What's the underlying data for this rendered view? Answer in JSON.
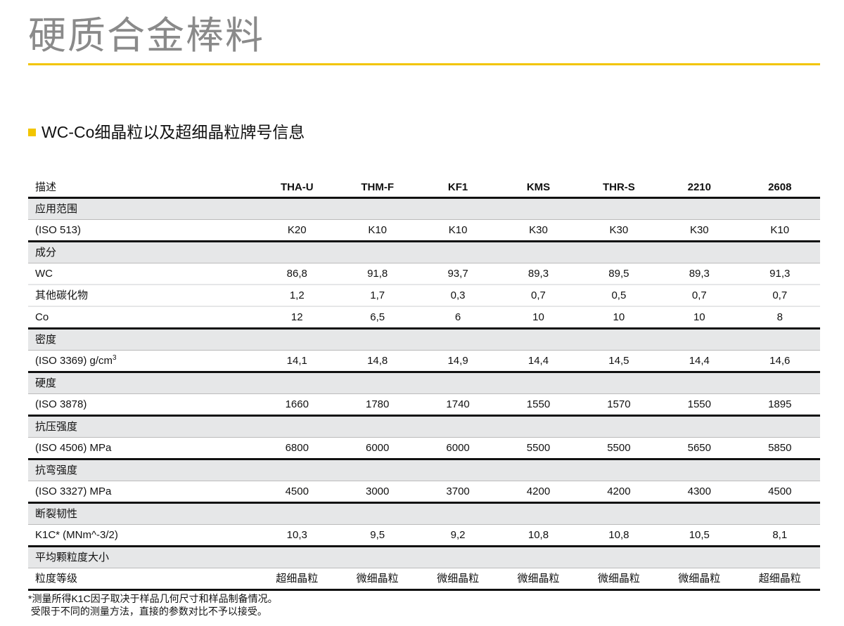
{
  "title": "硬质合金棒料",
  "section_heading": "WC-Co细晶粒以及超细晶粒牌号信息",
  "colors": {
    "accent": "#f2c500",
    "section_row": "#e6e7e8",
    "title": "#8a8a8a"
  },
  "table": {
    "header_label": "描述",
    "grades": [
      "THA-U",
      "THM-F",
      "KF1",
      "KMS",
      "THR-S",
      "2210",
      "2608"
    ],
    "sections": [
      {
        "title": "应用范围",
        "rows": [
          {
            "label": "(ISO 513)",
            "values": [
              "K20",
              "K10",
              "K10",
              "K30",
              "K30",
              "K30",
              "K10"
            ]
          }
        ]
      },
      {
        "title": "成分",
        "rows": [
          {
            "label": "WC",
            "values": [
              "86,8",
              "91,8",
              "93,7",
              "89,3",
              "89,5",
              "89,3",
              "91,3"
            ]
          },
          {
            "label": "其他碳化物",
            "values": [
              "1,2",
              "1,7",
              "0,3",
              "0,7",
              "0,5",
              "0,7",
              "0,7"
            ]
          },
          {
            "label": "Co",
            "values": [
              "12",
              "6,5",
              "6",
              "10",
              "10",
              "10",
              "8"
            ]
          }
        ]
      },
      {
        "title": "密度",
        "rows": [
          {
            "label": "(ISO 3369) g/cm",
            "sup": "3",
            "values": [
              "14,1",
              "14,8",
              "14,9",
              "14,4",
              "14,5",
              "14,4",
              "14,6"
            ]
          }
        ]
      },
      {
        "title": "硬度",
        "rows": [
          {
            "label": "(ISO 3878)",
            "values": [
              "1660",
              "1780",
              "1740",
              "1550",
              "1570",
              "1550",
              "1895"
            ]
          }
        ]
      },
      {
        "title": "抗压强度",
        "rows": [
          {
            "label": "(ISO 4506) MPa",
            "values": [
              "6800",
              "6000",
              "6000",
              "5500",
              "5500",
              "5650",
              "5850"
            ]
          }
        ]
      },
      {
        "title": "抗弯强度",
        "rows": [
          {
            "label": "(ISO 3327) MPa",
            "values": [
              "4500",
              "3000",
              "3700",
              "4200",
              "4200",
              "4300",
              "4500"
            ]
          }
        ]
      },
      {
        "title": "断裂韧性",
        "rows": [
          {
            "label": "K1C* (MNm^-3/2)",
            "values": [
              "10,3",
              "9,5",
              "9,2",
              "10,8",
              "10,8",
              "10,5",
              "8,1"
            ]
          }
        ]
      },
      {
        "title": "平均颗粒度大小",
        "rows": [
          {
            "label": "粒度等级",
            "values": [
              "超细晶粒",
              "微细晶粒",
              "微细晶粒",
              "微细晶粒",
              "微细晶粒",
              "微细晶粒",
              "超细晶粒"
            ]
          }
        ]
      }
    ]
  },
  "footnote": [
    "*测量所得K1C因子取决于样品几何尺寸和样品制备情况。",
    " 受限于不同的测量方法，直接的参数对比不予以接受。"
  ]
}
